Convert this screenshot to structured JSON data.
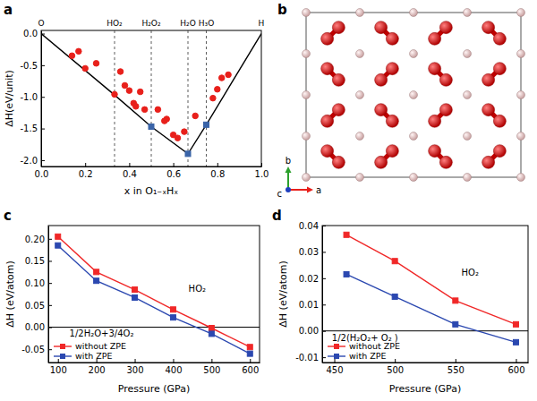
{
  "chart_data": [
    {
      "type": "scatter",
      "panel": "a",
      "x_label": "x in O₁₋ₓHₓ",
      "y_label": "ΔH(eV/unit)",
      "xlim": [
        0,
        1
      ],
      "ylim": [
        -2.1,
        0.05
      ],
      "xticks": [
        {
          "value": 0,
          "label": "0.0"
        },
        {
          "value": 0.2,
          "label": "0.2"
        },
        {
          "value": 0.4,
          "label": "0.4"
        },
        {
          "value": 0.6,
          "label": "0.6"
        },
        {
          "value": 0.8,
          "label": "0.8"
        },
        {
          "value": 1,
          "label": "1.0"
        }
      ],
      "yticks": [
        {
          "value": -2,
          "label": "-2.0"
        },
        {
          "value": -1.5,
          "label": "-1.5"
        },
        {
          "value": -1,
          "label": "-1.0"
        },
        {
          "value": -0.5,
          "label": "-0.5"
        },
        {
          "value": 0,
          "label": "0.0"
        }
      ],
      "annotations": [
        {
          "text": "O",
          "x": 0
        },
        {
          "text": "HO₂",
          "x": 0.3333
        },
        {
          "text": "H₂O₂",
          "x": 0.5
        },
        {
          "text": "H₂O",
          "x": 0.6667
        },
        {
          "text": "H₃O",
          "x": 0.75
        },
        {
          "text": "H",
          "x": 1
        }
      ],
      "series": [
        {
          "type": "line",
          "color": "#000000",
          "marker": "none",
          "line_style": "solid",
          "x": [
            0,
            0.3333,
            0.5,
            0.6667,
            0.75,
            1
          ],
          "values": [
            0,
            -0.97,
            -1.47,
            -1.9,
            -1.44,
            0
          ]
        },
        {
          "type": "scatter",
          "color": "#e8201b",
          "marker": "circle",
          "x": [
            0.14,
            0.17,
            0.2,
            0.25,
            0.3333,
            0.36,
            0.38,
            0.4,
            0.42,
            0.43,
            0.45,
            0.47,
            0.53,
            0.56,
            0.57,
            0.6,
            0.62,
            0.65,
            0.7,
            0.78,
            0.8,
            0.82,
            0.85
          ],
          "values": [
            -0.35,
            -0.28,
            -0.55,
            -0.47,
            -0.96,
            -0.6,
            -0.82,
            -0.9,
            -1.1,
            -1.15,
            -0.92,
            -1.2,
            -1.2,
            -1.38,
            -1.35,
            -1.6,
            -1.65,
            -1.55,
            -1.3,
            -1.02,
            -0.88,
            -0.7,
            -0.65
          ]
        },
        {
          "type": "scatter",
          "color": "#3a64a8",
          "marker": "square",
          "x": [
            0.5,
            0.6667,
            0.75
          ],
          "values": [
            -1.47,
            -1.9,
            -1.44
          ]
        }
      ]
    },
    {
      "type": "structure",
      "panel": "b",
      "lattice_axes": [
        {
          "label": "a",
          "color": "#e8201b"
        },
        {
          "label": "b",
          "color": "#2ca02c"
        },
        {
          "label": "c",
          "color": "#2040c0"
        }
      ]
    },
    {
      "type": "line",
      "panel": "c",
      "x_label": "Pressure (GPa)",
      "y_label": "ΔH (eV/atom)",
      "x": [
        100,
        200,
        300,
        400,
        500,
        600
      ],
      "xlim": [
        75,
        625
      ],
      "ylim": [
        -0.08,
        0.23
      ],
      "xticks": [
        100,
        200,
        300,
        400,
        500,
        600
      ],
      "yticks": [
        -0.05,
        {
          "value": 0,
          "label": "0.00"
        },
        0.05,
        {
          "value": 0.1,
          "label": "0.10"
        },
        0.15,
        {
          "value": 0.2,
          "label": "0.20"
        }
      ],
      "hline": 0,
      "legend": "lower left",
      "annotations": [
        {
          "text": "HO₂",
          "x": 440,
          "y": 0.08
        },
        {
          "text": "1/2H₂O+3/4O₂",
          "x": 130,
          "y": -0.022
        }
      ],
      "series": [
        {
          "name": "without ZPE",
          "color": "#f02828",
          "marker": "square",
          "values": [
            0.205,
            0.125,
            0.085,
            0.04,
            -0.002,
            -0.045
          ]
        },
        {
          "name": "with ZPE",
          "color": "#2b48b0",
          "marker": "square",
          "values": [
            0.185,
            0.105,
            0.067,
            0.022,
            -0.015,
            -0.06
          ]
        }
      ]
    },
    {
      "type": "line",
      "panel": "d",
      "x_label": "Pressure (GPa)",
      "y_label": "ΔH (eV/atom)",
      "x": [
        460,
        500,
        550,
        600
      ],
      "xlim": [
        440,
        610
      ],
      "ylim": [
        -0.012,
        0.04
      ],
      "xticks": [
        450,
        500,
        550,
        600
      ],
      "yticks": [
        -0.01,
        {
          "value": 0,
          "label": "0.00"
        },
        0.01,
        0.02,
        0.03,
        0.04
      ],
      "hline": 0,
      "legend": "lower left",
      "annotations": [
        {
          "text": "HO₂",
          "x": 555,
          "y": 0.021
        },
        {
          "text": "1/2(H₂O₂+ O₂ )",
          "x": 448,
          "y": -0.004
        }
      ],
      "series": [
        {
          "name": "without ZPE",
          "color": "#f02828",
          "marker": "square",
          "values": [
            0.0365,
            0.0265,
            0.0115,
            0.0025
          ]
        },
        {
          "name": "with ZPE",
          "color": "#2b48b0",
          "marker": "square",
          "values": [
            0.0215,
            0.013,
            0.0025,
            -0.0043
          ]
        }
      ]
    }
  ]
}
